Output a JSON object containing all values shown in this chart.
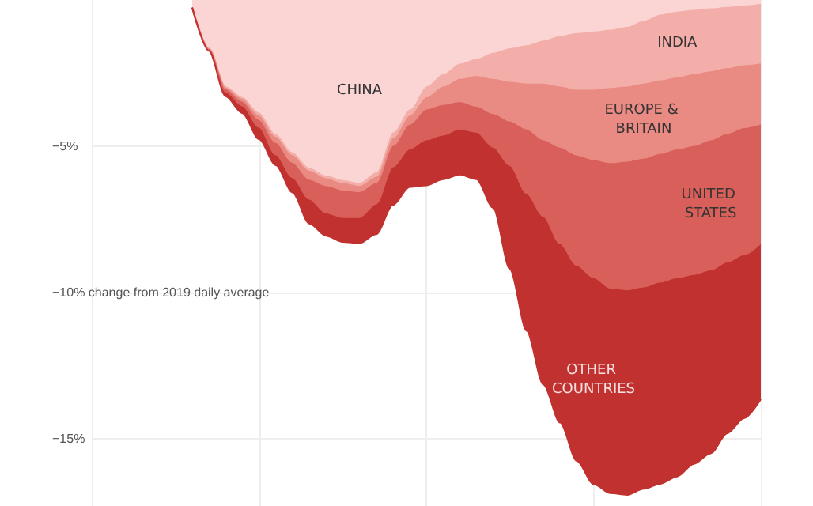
{
  "chart_data": {
    "type": "area",
    "stacked": true,
    "categories": [
      null,
      null,
      null,
      null,
      null,
      null,
      null,
      null,
      null,
      null,
      null,
      null,
      null,
      null,
      null,
      null,
      null,
      null,
      null,
      null,
      null,
      null,
      null,
      null,
      null,
      null,
      null,
      null,
      null,
      null,
      null,
      null,
      null,
      null,
      null
    ],
    "series": [
      {
        "name": "CHINA",
        "color": "#fbd5d3",
        "values": [
          -0.26,
          -1.62,
          -2.93,
          -3.3,
          -3.82,
          -4.55,
          -5.18,
          -5.71,
          -5.97,
          -6.13,
          -6.23,
          -5.86,
          -4.5,
          -3.72,
          -2.93,
          -2.51,
          -2.15,
          -1.99,
          -1.78,
          -1.62,
          -1.52,
          -1.36,
          -1.2,
          -1.1,
          -1.05,
          -0.99,
          -0.89,
          -0.68,
          -0.47,
          -0.37,
          -0.31,
          -0.26,
          -0.21,
          -0.16,
          -0.1
        ]
      },
      {
        "name": "INDIA",
        "color": "#f3aea9",
        "values": [
          0,
          -0.03,
          -0.05,
          -0.05,
          -0.1,
          -0.1,
          -0.1,
          -0.1,
          -0.1,
          -0.1,
          -0.1,
          -0.16,
          -0.21,
          -0.21,
          -0.37,
          -0.42,
          -0.52,
          -0.58,
          -0.89,
          -1.15,
          -1.31,
          -1.47,
          -1.73,
          -1.94,
          -1.99,
          -1.99,
          -2.04,
          -2.15,
          -2.25,
          -2.25,
          -2.2,
          -2.15,
          -2.09,
          -2.04,
          -2.04
        ]
      },
      {
        "name": "EUROPE & BRITAIN",
        "color": "#e98a83",
        "values": [
          0,
          -0.03,
          -0.05,
          -0.1,
          -0.16,
          -0.21,
          -0.26,
          -0.31,
          -0.26,
          -0.26,
          -0.21,
          -0.21,
          -0.26,
          -0.31,
          -0.42,
          -0.63,
          -0.79,
          -1.05,
          -1.2,
          -1.36,
          -1.57,
          -1.94,
          -2.09,
          -2.25,
          -2.41,
          -2.57,
          -2.57,
          -2.57,
          -2.51,
          -2.46,
          -2.46,
          -2.36,
          -2.25,
          -2.15,
          -2.09
        ]
      },
      {
        "name": "UNITED STATES",
        "color": "#d9605a",
        "values": [
          0,
          -0.03,
          -0.1,
          -0.16,
          -0.26,
          -0.42,
          -0.52,
          -0.68,
          -0.94,
          -0.94,
          -0.89,
          -0.73,
          -0.73,
          -0.84,
          -1.05,
          -1.05,
          -0.94,
          -0.89,
          -1.15,
          -1.52,
          -2.2,
          -2.62,
          -3.3,
          -3.77,
          -4.03,
          -4.29,
          -4.4,
          -4.4,
          -4.4,
          -4.4,
          -4.4,
          -4.45,
          -4.4,
          -4.35,
          -4.08
        ]
      },
      {
        "name": "OTHER COUNTRIES",
        "color": "#c0312f",
        "values": [
          0,
          -0.03,
          -0.16,
          -0.26,
          -0.42,
          -0.37,
          -0.52,
          -0.84,
          -0.79,
          -0.84,
          -0.89,
          -1.05,
          -1.31,
          -1.31,
          -1.57,
          -1.52,
          -1.57,
          -1.62,
          -2.09,
          -3.56,
          -4.71,
          -5.76,
          -6.13,
          -6.7,
          -7.07,
          -7.02,
          -7.02,
          -6.91,
          -6.91,
          -6.81,
          -6.49,
          -6.28,
          -5.86,
          -5.6,
          -5.34
        ]
      }
    ],
    "ylim": [
      -17.3,
      0
    ],
    "yticks": [
      {
        "value": -5,
        "label": "−5%"
      },
      {
        "value": -10,
        "label": "−10% change from 2019 daily average"
      },
      {
        "value": -15,
        "label": "−15%"
      }
    ],
    "grid": true,
    "tick_labels": "y",
    "legend": false
  }
}
